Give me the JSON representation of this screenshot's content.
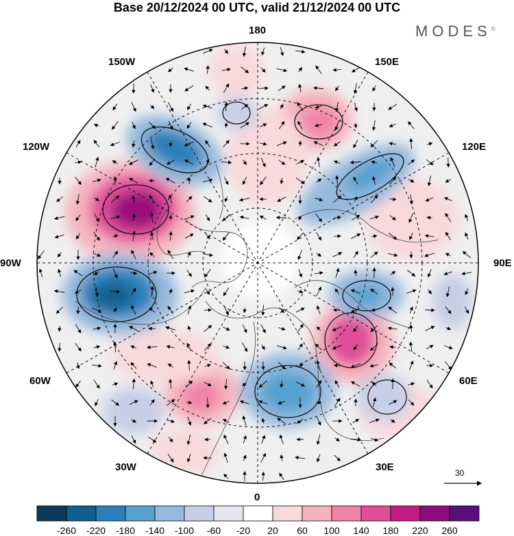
{
  "title": "Base 20/12/2024 00 UTC, valid 21/12/2024 00 UTC",
  "brand": "MODES",
  "brand_mark": "©",
  "longitude_labels": {
    "top": "180",
    "bottom": "0",
    "left": "90W",
    "right": "90E",
    "w150": "150W",
    "e150": "150E",
    "w120": "120W",
    "e120": "120E",
    "w60": "60W",
    "e60": "60E",
    "w30": "30W",
    "e30": "30E"
  },
  "reference_vector": "30",
  "colorbar": {
    "labels": [
      "-260",
      "-220",
      "-180",
      "-140",
      "-100",
      "-60",
      "-20",
      "20",
      "60",
      "100",
      "140",
      "180",
      "220",
      "260"
    ],
    "colors": [
      "#0d3a5a",
      "#125f8f",
      "#2a80b9",
      "#57a1cf",
      "#96b9dd",
      "#c7cfe6",
      "#e6e6f2",
      "#ffffff",
      "#f8d9dd",
      "#f5b3c0",
      "#ef83a8",
      "#e04e98",
      "#c21b86",
      "#8d0b7a",
      "#5a0e78"
    ]
  },
  "icons": [
    "north-pole-stereographic-map",
    "coastline",
    "wind-vector-arrow",
    "colorbar"
  ]
}
